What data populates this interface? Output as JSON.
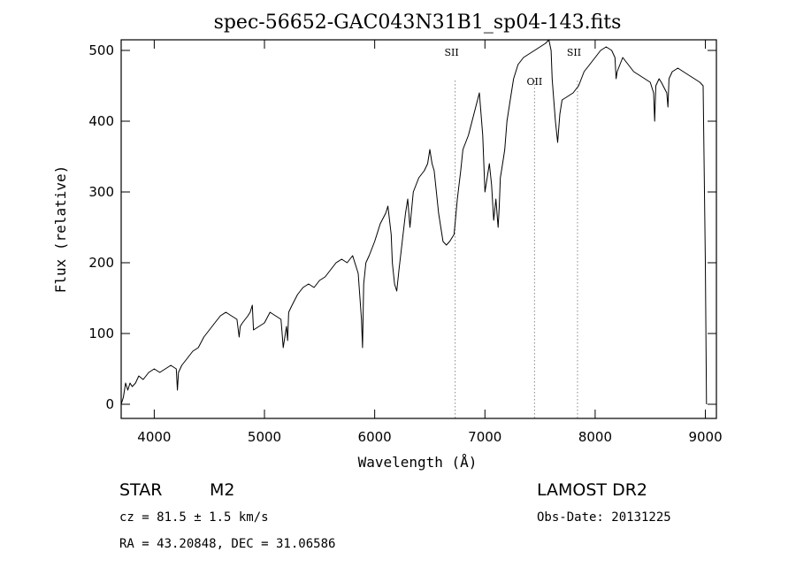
{
  "chart_data": {
    "type": "line",
    "title": "spec-56652-GAC043N31B1_sp04-143.fits",
    "xlabel": "Wavelength (Å)",
    "ylabel": "Flux (relative)",
    "xlim": [
      3700,
      9100
    ],
    "ylim": [
      -20,
      515
    ],
    "xticks": [
      4000,
      5000,
      6000,
      7000,
      8000,
      9000
    ],
    "yticks": [
      0,
      100,
      200,
      300,
      400,
      500
    ],
    "grid": false,
    "line_color": "#000000",
    "marker_color": "#888888",
    "series": [
      {
        "x": [
          3700,
          3720,
          3740,
          3760,
          3780,
          3800,
          3830,
          3860,
          3900,
          3950,
          4000,
          4050,
          4100,
          4150,
          4200,
          4210,
          4220,
          4250,
          4300,
          4350,
          4400,
          4450,
          4500,
          4550,
          4600,
          4650,
          4700,
          4750,
          4770,
          4780,
          4800,
          4850,
          4870,
          4890,
          4900,
          4950,
          5000,
          5050,
          5100,
          5150,
          5160,
          5170,
          5200,
          5210,
          5220,
          5250,
          5300,
          5350,
          5400,
          5450,
          5500,
          5550,
          5600,
          5650,
          5700,
          5750,
          5800,
          5850,
          5880,
          5890,
          5900,
          5920,
          5950,
          6000,
          6050,
          6100,
          6120,
          6150,
          6160,
          6180,
          6200,
          6220,
          6250,
          6280,
          6300,
          6320,
          6350,
          6400,
          6450,
          6480,
          6500,
          6520,
          6540,
          6560,
          6580,
          6600,
          6620,
          6650,
          6680,
          6700,
          6720,
          6750,
          6780,
          6800,
          6850,
          6900,
          6950,
          6980,
          7000,
          7020,
          7040,
          7060,
          7080,
          7100,
          7120,
          7130,
          7140,
          7150,
          7170,
          7180,
          7200,
          7230,
          7260,
          7300,
          7350,
          7400,
          7450,
          7500,
          7550,
          7580,
          7600,
          7610,
          7620,
          7640,
          7660,
          7680,
          7700,
          7750,
          7800,
          7850,
          7900,
          7950,
          8000,
          8050,
          8100,
          8150,
          8180,
          8190,
          8200,
          8250,
          8300,
          8350,
          8400,
          8450,
          8500,
          8530,
          8540,
          8550,
          8580,
          8600,
          8650,
          8660,
          8670,
          8700,
          8750,
          8800,
          8850,
          8900,
          8950,
          8980,
          9000,
          9010
        ],
        "y": [
          0,
          10,
          30,
          20,
          30,
          25,
          30,
          40,
          35,
          45,
          50,
          45,
          50,
          55,
          50,
          20,
          45,
          55,
          65,
          75,
          80,
          95,
          105,
          115,
          125,
          130,
          125,
          120,
          95,
          110,
          115,
          125,
          130,
          140,
          105,
          110,
          115,
          130,
          125,
          120,
          100,
          80,
          110,
          90,
          130,
          140,
          155,
          165,
          170,
          165,
          175,
          180,
          190,
          200,
          205,
          200,
          210,
          185,
          120,
          80,
          170,
          200,
          210,
          230,
          255,
          270,
          280,
          240,
          200,
          170,
          160,
          190,
          230,
          270,
          290,
          250,
          300,
          320,
          330,
          340,
          360,
          340,
          330,
          300,
          270,
          250,
          230,
          225,
          230,
          235,
          240,
          290,
          330,
          360,
          380,
          410,
          440,
          380,
          300,
          320,
          340,
          310,
          260,
          290,
          250,
          280,
          320,
          330,
          350,
          360,
          400,
          430,
          460,
          480,
          490,
          495,
          500,
          505,
          510,
          515,
          500,
          460,
          440,
          400,
          370,
          410,
          430,
          435,
          440,
          450,
          470,
          480,
          490,
          500,
          505,
          500,
          490,
          460,
          470,
          490,
          480,
          470,
          465,
          460,
          455,
          440,
          400,
          450,
          460,
          455,
          440,
          420,
          460,
          470,
          475,
          470,
          465,
          460,
          455,
          450,
          200,
          0
        ]
      }
    ],
    "line_markers": [
      {
        "label": "SII",
        "x": 6730
      },
      {
        "label": "OII",
        "x": 7450
      },
      {
        "label": "SII",
        "x": 7840
      }
    ]
  },
  "info": {
    "class": "STAR",
    "subclass": "M2",
    "survey": "LAMOST DR2",
    "cz": "cz = 81.5 ± 1.5 km/s",
    "obs_date": "Obs-Date: 20131225",
    "coords": "RA =  43.20848, DEC =  31.06586"
  }
}
